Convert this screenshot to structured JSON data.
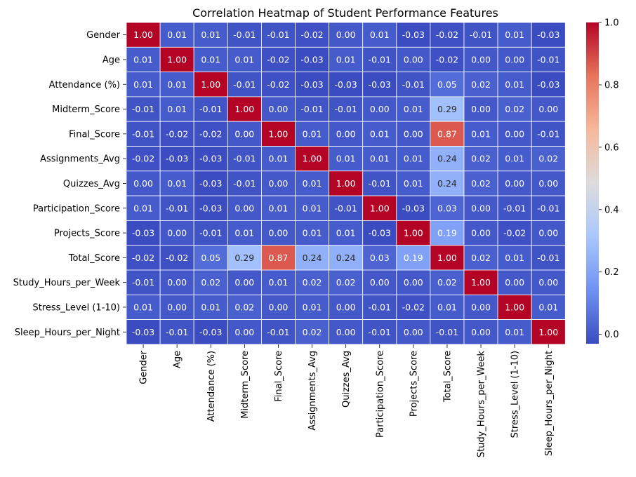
{
  "chart_data": {
    "type": "heatmap",
    "title": "Correlation Heatmap of Student Performance Features",
    "labels": [
      "Gender",
      "Age",
      "Attendance (%)",
      "Midterm_Score",
      "Final_Score",
      "Assignments_Avg",
      "Quizzes_Avg",
      "Participation_Score",
      "Projects_Score",
      "Total_Score",
      "Study_Hours_per_Week",
      "Stress_Level (1-10)",
      "Sleep_Hours_per_Night"
    ],
    "values": [
      [
        1.0,
        0.01,
        0.01,
        -0.01,
        -0.01,
        -0.02,
        -0.0,
        0.01,
        -0.03,
        -0.02,
        -0.01,
        0.01,
        -0.03
      ],
      [
        0.01,
        1.0,
        0.01,
        0.01,
        -0.02,
        -0.03,
        0.01,
        -0.01,
        0.0,
        -0.02,
        0.0,
        -0.0,
        -0.01
      ],
      [
        0.01,
        0.01,
        1.0,
        -0.01,
        -0.02,
        -0.03,
        -0.03,
        -0.03,
        -0.01,
        0.05,
        0.02,
        0.01,
        -0.03
      ],
      [
        -0.01,
        0.01,
        -0.01,
        1.0,
        0.0,
        -0.01,
        -0.01,
        -0.0,
        0.01,
        0.29,
        0.0,
        0.02,
        -0.0
      ],
      [
        -0.01,
        -0.02,
        -0.02,
        0.0,
        1.0,
        0.01,
        0.0,
        0.01,
        -0.0,
        0.87,
        0.01,
        -0.0,
        -0.01
      ],
      [
        -0.02,
        -0.03,
        -0.03,
        -0.01,
        0.01,
        1.0,
        0.01,
        0.01,
        0.01,
        0.24,
        0.02,
        0.01,
        0.02
      ],
      [
        -0.0,
        0.01,
        -0.03,
        -0.01,
        0.0,
        0.01,
        1.0,
        -0.01,
        0.01,
        0.24,
        0.02,
        0.0,
        0.0
      ],
      [
        0.01,
        -0.01,
        -0.03,
        -0.0,
        0.01,
        0.01,
        -0.01,
        1.0,
        -0.03,
        0.03,
        -0.0,
        -0.01,
        -0.01
      ],
      [
        -0.03,
        0.0,
        -0.01,
        0.01,
        -0.0,
        0.01,
        0.01,
        -0.03,
        1.0,
        0.19,
        0.0,
        -0.02,
        -0.0
      ],
      [
        -0.02,
        -0.02,
        0.05,
        0.29,
        0.87,
        0.24,
        0.24,
        0.03,
        0.19,
        1.0,
        0.02,
        0.01,
        -0.01
      ],
      [
        -0.01,
        0.0,
        0.02,
        0.0,
        0.01,
        0.02,
        0.02,
        -0.0,
        0.0,
        0.02,
        1.0,
        0.0,
        -0.0
      ],
      [
        0.01,
        -0.0,
        0.01,
        0.02,
        -0.0,
        0.01,
        0.0,
        -0.01,
        -0.02,
        0.01,
        0.0,
        1.0,
        0.01
      ],
      [
        -0.03,
        -0.01,
        -0.03,
        -0.0,
        -0.01,
        0.02,
        0.0,
        -0.01,
        -0.0,
        -0.01,
        -0.0,
        0.01,
        1.0
      ]
    ],
    "colormap": "coolwarm",
    "colormap_stops": [
      "#3b4cc0",
      "#6f92f3",
      "#aac7fd",
      "#dddcdc",
      "#f7b89c",
      "#e7745b",
      "#b40426"
    ],
    "vmin": -0.03,
    "vmax": 1.0,
    "colorbar_ticks": [
      "0.0",
      "0.2",
      "0.4",
      "0.6",
      "0.8",
      "1.0"
    ],
    "colorbar_tick_values": [
      0.0,
      0.2,
      0.4,
      0.6,
      0.8,
      1.0
    ],
    "annotation_format": "2 decimals",
    "xlabel": "",
    "ylabel": ""
  }
}
